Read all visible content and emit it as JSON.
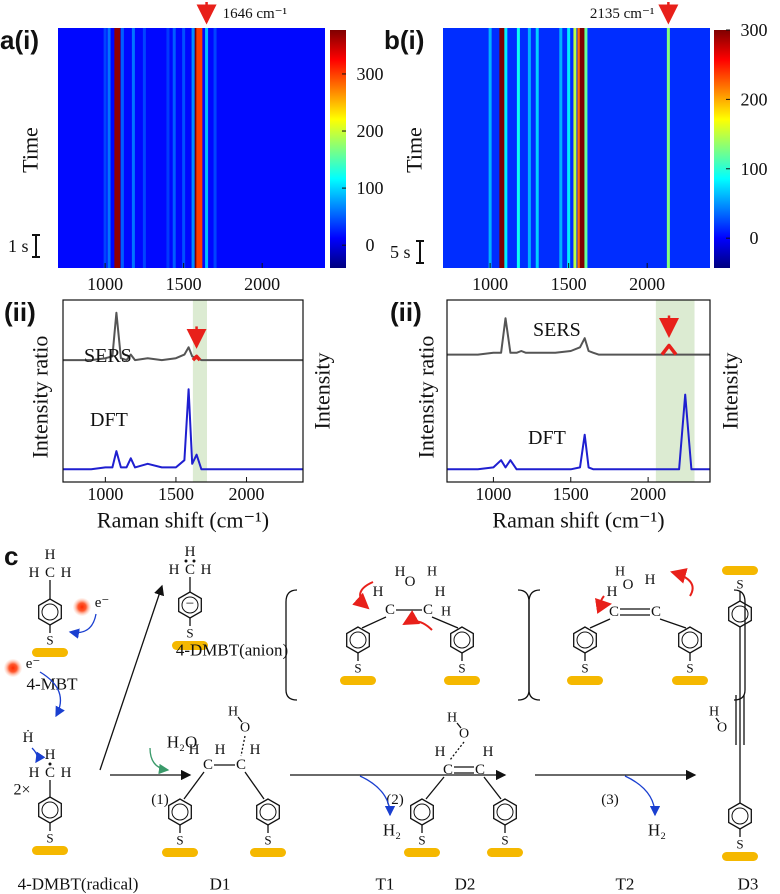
{
  "chart_data": [
    {
      "type": "heatmap",
      "panel_label": "a(i)",
      "ylabel": "Time",
      "scale_bar": "1 s",
      "xlim": [
        700,
        2400
      ],
      "xticks": [
        1000,
        1500,
        2000
      ],
      "clim": [
        -40,
        377
      ],
      "cticks": [
        0,
        100,
        200,
        300
      ],
      "background": 15,
      "annotation": "1646 cm⁻¹",
      "marker_x": 1646,
      "stripes": {
        "x": [
          1000,
          1025,
          1078,
          1110,
          1180,
          1250,
          1400,
          1440,
          1500,
          1560,
          1590,
          1600,
          1646,
          1700
        ],
        "values": [
          40,
          60,
          370,
          50,
          60,
          40,
          35,
          50,
          45,
          70,
          377,
          300,
          90,
          40
        ]
      }
    },
    {
      "type": "line",
      "panel_label": "(ii)",
      "xlabel": "Raman shift (cm⁻¹)",
      "ylabel": "Intensity ratio",
      "y2label": "Intensity",
      "xlim": [
        700,
        2400
      ],
      "xticks": [
        1000,
        1500,
        2000
      ],
      "ylim": [
        0,
        1
      ],
      "shade": [
        1620,
        1720
      ],
      "x": [
        700,
        800,
        900,
        1000,
        1050,
        1078,
        1110,
        1150,
        1180,
        1210,
        1300,
        1400,
        1500,
        1560,
        1590,
        1615,
        1646,
        1680,
        1700,
        1800,
        1900,
        2000,
        2100,
        2135,
        2170,
        2200,
        2240,
        2280,
        2320,
        2400
      ],
      "series": [
        {
          "name": "SERS",
          "color": "#555555",
          "values": [
            0.67,
            0.67,
            0.67,
            0.68,
            0.69,
            0.93,
            0.68,
            0.67,
            0.7,
            0.67,
            0.68,
            0.67,
            0.68,
            0.7,
            0.74,
            0.69,
            0.68,
            0.67,
            0.67,
            0.67,
            0.67,
            0.67,
            0.67,
            0.67,
            0.67,
            0.67,
            0.67,
            0.67,
            0.67,
            0.67
          ]
        },
        {
          "name": "DFT",
          "color": "#1f1fd0",
          "values": [
            0.07,
            0.07,
            0.07,
            0.08,
            0.08,
            0.17,
            0.08,
            0.08,
            0.13,
            0.08,
            0.1,
            0.08,
            0.08,
            0.12,
            0.51,
            0.1,
            0.15,
            0.07,
            0.07,
            0.07,
            0.07,
            0.07,
            0.07,
            0.07,
            0.07,
            0.07,
            0.07,
            0.07,
            0.07,
            0.07
          ]
        }
      ],
      "highlight": {
        "color": "#e8201a",
        "x": [
          1620,
          1646,
          1670
        ],
        "values": [
          0.67,
          0.69,
          0.67
        ]
      }
    },
    {
      "type": "heatmap",
      "panel_label": "b(i)",
      "ylabel": "Time",
      "scale_bar": "5 s",
      "xlim": [
        700,
        2400
      ],
      "xticks": [
        1000,
        1500,
        2000
      ],
      "clim": [
        -43,
        300
      ],
      "cticks": [
        0,
        100,
        200,
        300
      ],
      "background": 15,
      "annotation": "2135 cm⁻¹",
      "marker_x": 2135,
      "stripes": {
        "x": [
          1000,
          1078,
          1100,
          1180,
          1250,
          1300,
          1450,
          1500,
          1540,
          1575,
          1590,
          1610,
          2135
        ],
        "values": [
          60,
          300,
          80,
          90,
          60,
          70,
          60,
          80,
          150,
          220,
          300,
          120,
          130
        ]
      }
    },
    {
      "type": "line",
      "panel_label": "(ii)",
      "xlabel": "Raman shift (cm⁻¹)",
      "ylabel": "Intensity ratio",
      "y2label": "Intensity",
      "xlim": [
        700,
        2400
      ],
      "xticks": [
        1000,
        1500,
        2000
      ],
      "ylim": [
        0,
        1
      ],
      "shade": [
        2050,
        2300
      ],
      "x": [
        700,
        800,
        900,
        1000,
        1050,
        1078,
        1110,
        1150,
        1180,
        1210,
        1300,
        1400,
        1500,
        1560,
        1590,
        1615,
        1646,
        1680,
        1700,
        1800,
        1900,
        2000,
        2100,
        2135,
        2170,
        2200,
        2240,
        2280,
        2320,
        2400
      ],
      "series": [
        {
          "name": "SERS",
          "color": "#555555",
          "values": [
            0.7,
            0.7,
            0.7,
            0.71,
            0.71,
            0.9,
            0.71,
            0.71,
            0.72,
            0.71,
            0.71,
            0.71,
            0.72,
            0.74,
            0.79,
            0.72,
            0.71,
            0.7,
            0.7,
            0.7,
            0.7,
            0.7,
            0.7,
            0.7,
            0.7,
            0.7,
            0.7,
            0.7,
            0.7,
            0.7
          ]
        },
        {
          "name": "DFT",
          "color": "#1f1fd0",
          "values": [
            0.07,
            0.07,
            0.07,
            0.08,
            0.12,
            0.08,
            0.12,
            0.07,
            0.07,
            0.07,
            0.07,
            0.07,
            0.07,
            0.08,
            0.26,
            0.08,
            0.07,
            0.07,
            0.07,
            0.07,
            0.07,
            0.07,
            0.07,
            0.07,
            0.07,
            0.07,
            0.48,
            0.07,
            0.07,
            0.07
          ]
        }
      ],
      "highlight": {
        "color": "#e8201a",
        "x": [
          2090,
          2135,
          2180
        ],
        "values": [
          0.7,
          0.75,
          0.7
        ]
      }
    }
  ],
  "scheme": {
    "label": "c",
    "atoms": {
      "H": "H",
      "C": "C",
      "S": "S",
      "O": "O"
    },
    "charge": "−",
    "radical_h": "Ḣ",
    "multiplier": "2×",
    "electron": "e⁻",
    "h2o": "H₂O",
    "h2": "H₂",
    "steps": [
      "(1)",
      "(2)",
      "(3)"
    ],
    "species": {
      "mbt": "4-MBT",
      "anion": "4-DMBT(anion)",
      "radical": "4-DMBT(radical)",
      "d1": "D1",
      "t1": "T1",
      "d2": "D2",
      "t2": "T2",
      "d3": "D3"
    }
  }
}
